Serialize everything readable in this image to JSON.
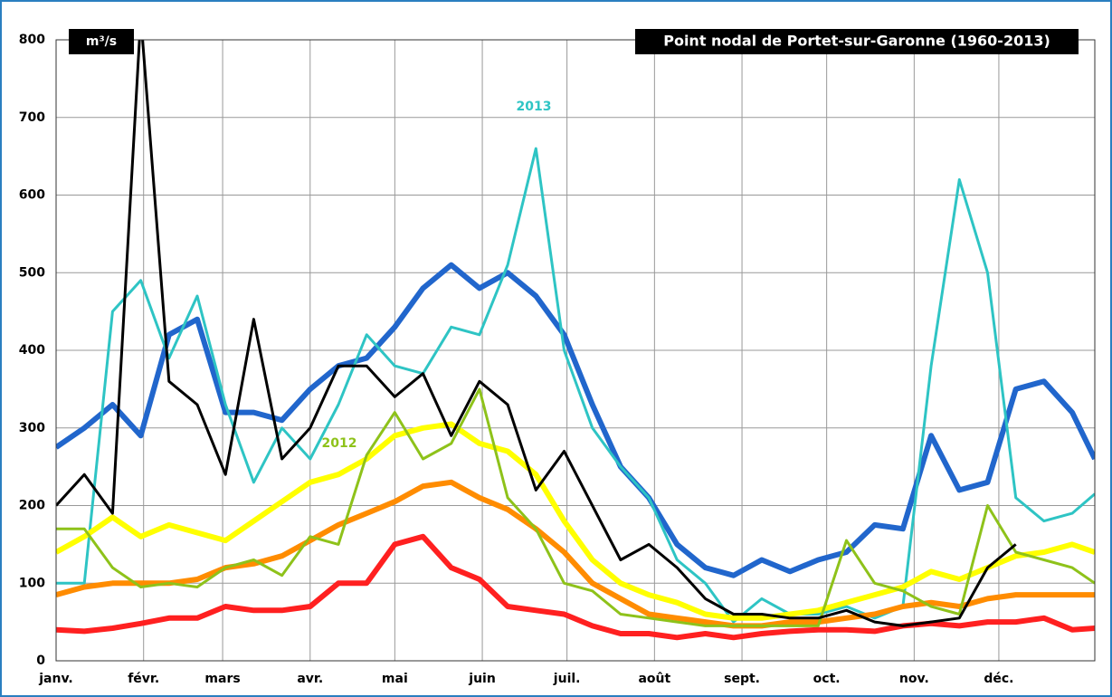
{
  "chart_data": {
    "type": "line",
    "title": "Point nodal de Portet-sur-Garonne (1960-2013)",
    "y_label": "m³/s",
    "annotations": [
      {
        "text": "2013",
        "color": "#2ec4c4"
      },
      {
        "text": "2012",
        "color": "#8ec21a"
      }
    ],
    "x": [
      0,
      10,
      20,
      30,
      40,
      50,
      60,
      70,
      80,
      90,
      100,
      110,
      120,
      130,
      140,
      150,
      160,
      170,
      180,
      190,
      200,
      210,
      220,
      230,
      240,
      250,
      260,
      270,
      280,
      290,
      300,
      310,
      320,
      330,
      340,
      350,
      360,
      368
    ],
    "xlim": [
      0,
      368
    ],
    "xticks": [
      {
        "value": 0,
        "label": "janv."
      },
      {
        "value": 31,
        "label": "févr."
      },
      {
        "value": 59,
        "label": "mars"
      },
      {
        "value": 90,
        "label": "avr."
      },
      {
        "value": 120,
        "label": "mai"
      },
      {
        "value": 151,
        "label": "juin"
      },
      {
        "value": 181,
        "label": "juil."
      },
      {
        "value": 212,
        "label": "août"
      },
      {
        "value": 243,
        "label": "sept."
      },
      {
        "value": 273,
        "label": "oct."
      },
      {
        "value": 304,
        "label": "nov."
      },
      {
        "value": 334,
        "label": "déc."
      }
    ],
    "ylim": [
      0,
      800
    ],
    "yticks": [
      0,
      100,
      200,
      300,
      400,
      500,
      600,
      700,
      800
    ],
    "grid": true,
    "series": [
      {
        "color": "#2166cc",
        "width": 6,
        "values": [
          275,
          300,
          330,
          290,
          420,
          440,
          320,
          320,
          310,
          350,
          380,
          390,
          430,
          480,
          510,
          480,
          500,
          470,
          420,
          330,
          250,
          210,
          150,
          120,
          110,
          130,
          115,
          130,
          140,
          175,
          170,
          290,
          220,
          230,
          350,
          360,
          320,
          260
        ]
      },
      {
        "color": "#2ec4c4",
        "width": 3,
        "values": [
          100,
          100,
          450,
          490,
          390,
          470,
          330,
          230,
          300,
          260,
          330,
          420,
          380,
          370,
          430,
          420,
          510,
          660,
          400,
          300,
          250,
          210,
          130,
          100,
          50,
          80,
          60,
          60,
          70,
          55,
          70,
          380,
          620,
          500,
          210,
          180,
          190,
          215
        ]
      },
      {
        "color": "#ffff00",
        "width": 6,
        "values": [
          140,
          160,
          185,
          160,
          175,
          165,
          155,
          180,
          205,
          230,
          240,
          260,
          290,
          300,
          305,
          280,
          270,
          240,
          180,
          130,
          100,
          85,
          75,
          60,
          55,
          55,
          60,
          65,
          75,
          85,
          95,
          115,
          105,
          120,
          135,
          140,
          150,
          140
        ]
      },
      {
        "color": "#ff8c00",
        "width": 6,
        "values": [
          85,
          95,
          100,
          100,
          100,
          105,
          120,
          125,
          135,
          155,
          175,
          190,
          205,
          225,
          230,
          210,
          195,
          170,
          140,
          100,
          80,
          60,
          55,
          50,
          45,
          45,
          50,
          50,
          55,
          60,
          70,
          75,
          70,
          80,
          85,
          85,
          85,
          85
        ]
      },
      {
        "color": "#ff2020",
        "width": 6,
        "values": [
          40,
          38,
          42,
          48,
          55,
          55,
          70,
          65,
          65,
          70,
          100,
          100,
          150,
          160,
          120,
          105,
          70,
          65,
          60,
          45,
          35,
          35,
          30,
          35,
          30,
          35,
          38,
          40,
          40,
          38,
          45,
          48,
          45,
          50,
          50,
          55,
          40,
          42
        ]
      },
      {
        "color": "#8ec21a",
        "width": 3,
        "values": [
          170,
          170,
          120,
          95,
          100,
          95,
          120,
          130,
          110,
          160,
          150,
          265,
          320,
          260,
          280,
          350,
          210,
          170,
          100,
          90,
          60,
          55,
          50,
          45,
          45,
          45,
          45,
          45,
          155,
          100,
          90,
          70,
          60,
          200,
          140,
          130,
          120,
          100
        ]
      },
      {
        "color": "#000000",
        "width": 3,
        "values": [
          200,
          240,
          190,
          830,
          360,
          330,
          240,
          440,
          260,
          300,
          380,
          380,
          340,
          370,
          290,
          360,
          330,
          220,
          270,
          200,
          130,
          150,
          120,
          80,
          60,
          60,
          55,
          55,
          65,
          50,
          45,
          50,
          55,
          120,
          150,
          null,
          null,
          null
        ]
      }
    ]
  }
}
